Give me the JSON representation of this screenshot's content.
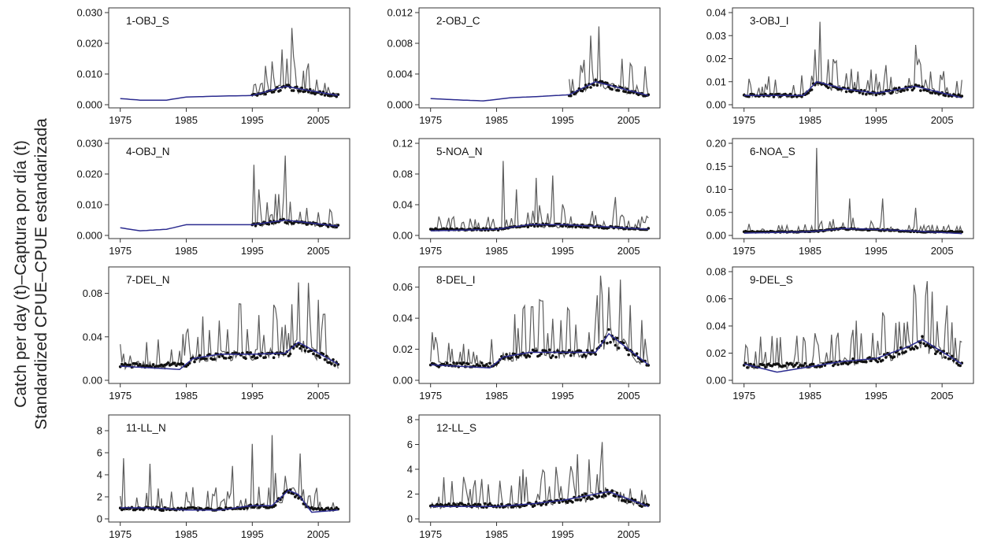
{
  "y_axis_label": {
    "line1": "Catch per day (t)–Captura por día (t)",
    "line2": "Standardized CPUE–CPUE estandarizada"
  },
  "chart_data": [
    {
      "type": "line",
      "title": "1-OBJ_S",
      "xlim": [
        1975,
        2008
      ],
      "x_ticks": [
        1975,
        1985,
        1995,
        2005
      ],
      "ylim": [
        0,
        0.03
      ],
      "y_ticks": [
        "0.000",
        "0.010",
        "0.020",
        "0.030"
      ],
      "series": [],
      "observed": {
        "start": 1995,
        "end": 2008,
        "base": 0.003,
        "peaks": [
          [
            1999.5,
            0.018
          ],
          [
            2001,
            0.025
          ],
          [
            2000.3,
            0.015
          ]
        ]
      },
      "fit": [
        [
          1975,
          0.002
        ],
        [
          1978,
          0.0015
        ],
        [
          1982,
          0.0015
        ],
        [
          1985,
          0.0025
        ],
        [
          1990,
          0.0028
        ],
        [
          1995,
          0.003
        ],
        [
          2000,
          0.006
        ],
        [
          2008,
          0.003
        ]
      ]
    },
    {
      "type": "line",
      "title": "2-OBJ_C",
      "xlim": [
        1975,
        2008
      ],
      "x_ticks": [
        1975,
        1985,
        1995,
        2005
      ],
      "ylim": [
        0,
        0.012
      ],
      "y_ticks": [
        "0.000",
        "0.004",
        "0.008",
        "0.012"
      ],
      "series": [],
      "observed": {
        "start": 1996,
        "end": 2008,
        "base": 0.0012,
        "peaks": [
          [
            1999.2,
            0.009
          ],
          [
            2000.5,
            0.0102
          ],
          [
            2007.5,
            0.005
          ]
        ]
      },
      "fit": [
        [
          1975,
          0.0008
        ],
        [
          1980,
          0.0006
        ],
        [
          1983,
          0.0005
        ],
        [
          1987,
          0.0009
        ],
        [
          1992,
          0.0011
        ],
        [
          1996,
          0.0013
        ],
        [
          2000,
          0.003
        ],
        [
          2008,
          0.0012
        ]
      ]
    },
    {
      "type": "line",
      "title": "3-OBJ_I",
      "xlim": [
        1975,
        2008
      ],
      "x_ticks": [
        1975,
        1985,
        1995,
        2005
      ],
      "ylim": [
        0,
        0.04
      ],
      "y_ticks": [
        "0.00",
        "0.01",
        "0.02",
        "0.03",
        "0.04"
      ],
      "series": [],
      "observed": {
        "start": 1975,
        "end": 2008,
        "base": 0.004,
        "peaks": [
          [
            1986.5,
            0.036
          ],
          [
            1985.8,
            0.024
          ],
          [
            1989,
            0.019
          ],
          [
            2001,
            0.026
          ]
        ]
      },
      "fit": [
        [
          1975,
          0.004
        ],
        [
          1984,
          0.004
        ],
        [
          1986,
          0.01
        ],
        [
          1990,
          0.007
        ],
        [
          1995,
          0.005
        ],
        [
          2001,
          0.008
        ],
        [
          2008,
          0.003
        ]
      ]
    },
    {
      "type": "line",
      "title": "4-OBJ_N",
      "xlim": [
        1975,
        2008
      ],
      "x_ticks": [
        1975,
        1985,
        1995,
        2005
      ],
      "ylim": [
        0,
        0.03
      ],
      "y_ticks": [
        "0.000",
        "0.010",
        "0.020",
        "0.030"
      ],
      "series": [],
      "observed": {
        "start": 1995,
        "end": 2008,
        "base": 0.003,
        "peaks": [
          [
            1995.3,
            0.023
          ],
          [
            2000,
            0.026
          ],
          [
            1996,
            0.015
          ]
        ]
      },
      "fit": [
        [
          1975,
          0.0025
        ],
        [
          1978,
          0.0015
        ],
        [
          1982,
          0.002
        ],
        [
          1985,
          0.0035
        ],
        [
          1990,
          0.0035
        ],
        [
          1995,
          0.0035
        ],
        [
          2000,
          0.005
        ],
        [
          2008,
          0.003
        ]
      ]
    },
    {
      "type": "line",
      "title": "5-NOA_N",
      "xlim": [
        1975,
        2008
      ],
      "x_ticks": [
        1975,
        1985,
        1995,
        2005
      ],
      "ylim": [
        0,
        0.12
      ],
      "y_ticks": [
        "0.00",
        "0.04",
        "0.08",
        "0.12"
      ],
      "series": [],
      "observed": {
        "start": 1975,
        "end": 2008,
        "base": 0.008,
        "peaks": [
          [
            1986,
            0.097
          ],
          [
            1991,
            0.075
          ],
          [
            1993.5,
            0.078
          ],
          [
            1988,
            0.06
          ],
          [
            2003,
            0.05
          ]
        ]
      },
      "fit": [
        [
          1975,
          0.006
        ],
        [
          1985,
          0.008
        ],
        [
          1990,
          0.014
        ],
        [
          1995,
          0.014
        ],
        [
          2000,
          0.012
        ],
        [
          2008,
          0.008
        ]
      ]
    },
    {
      "type": "line",
      "title": "6-NOA_S",
      "xlim": [
        1975,
        2008
      ],
      "x_ticks": [
        1975,
        1985,
        1995,
        2005
      ],
      "ylim": [
        0,
        0.2
      ],
      "y_ticks": [
        "0.00",
        "0.05",
        "0.10",
        "0.15",
        "0.20"
      ],
      "series": [],
      "observed": {
        "start": 1975,
        "end": 2008,
        "base": 0.008,
        "peaks": [
          [
            1986,
            0.19
          ],
          [
            1991,
            0.08
          ],
          [
            1996,
            0.08
          ],
          [
            2001,
            0.06
          ]
        ]
      },
      "fit": [
        [
          1975,
          0.005
        ],
        [
          1985,
          0.008
        ],
        [
          1990,
          0.015
        ],
        [
          1995,
          0.013
        ],
        [
          2000,
          0.01
        ],
        [
          2008,
          0.004
        ]
      ]
    },
    {
      "type": "line",
      "title": "7-DEL_N",
      "xlim": [
        1975,
        2008
      ],
      "x_ticks": [
        1975,
        1985,
        1995,
        2005
      ],
      "ylim": [
        0,
        0.1
      ],
      "y_ticks": [
        "0.00",
        "0.04",
        "0.08"
      ],
      "series": [],
      "observed": {
        "start": 1975,
        "end": 2008,
        "base": 0.014,
        "peaks": [
          [
            2002,
            0.09
          ],
          [
            1996,
            0.06
          ],
          [
            1990,
            0.055
          ],
          [
            2001,
            0.07
          ]
        ]
      },
      "fit": [
        [
          1975,
          0.013
        ],
        [
          1984,
          0.01
        ],
        [
          1986,
          0.02
        ],
        [
          1990,
          0.024
        ],
        [
          1995,
          0.024
        ],
        [
          2000,
          0.025
        ],
        [
          2002,
          0.035
        ],
        [
          2008,
          0.015
        ]
      ]
    },
    {
      "type": "line",
      "title": "8-DEL_I",
      "xlim": [
        1975,
        2008
      ],
      "x_ticks": [
        1975,
        1985,
        1995,
        2005
      ],
      "ylim": [
        0,
        0.07
      ],
      "y_ticks": [
        "0.00",
        "0.02",
        "0.04",
        "0.06"
      ],
      "series": [],
      "observed": {
        "start": 1975,
        "end": 2008,
        "base": 0.01,
        "peaks": [
          [
            2002,
            0.06
          ],
          [
            1996,
            0.045
          ],
          [
            2001,
            0.055
          ]
        ]
      },
      "fit": [
        [
          1975,
          0.01
        ],
        [
          1984,
          0.008
        ],
        [
          1986,
          0.015
        ],
        [
          1990,
          0.018
        ],
        [
          1995,
          0.018
        ],
        [
          2000,
          0.018
        ],
        [
          2002,
          0.03
        ],
        [
          2008,
          0.01
        ]
      ]
    },
    {
      "type": "line",
      "title": "9-DEL_S",
      "xlim": [
        1975,
        2008
      ],
      "x_ticks": [
        1975,
        1985,
        1995,
        2005
      ],
      "ylim": [
        0,
        0.08
      ],
      "y_ticks": [
        "0.00",
        "0.02",
        "0.04",
        "0.06",
        "0.08"
      ],
      "series": [],
      "observed": {
        "start": 1975,
        "end": 2008,
        "base": 0.011,
        "peaks": [
          [
            2001,
            0.063
          ],
          [
            2002.5,
            0.062
          ],
          [
            1996,
            0.05
          ]
        ]
      },
      "fit": [
        [
          1975,
          0.012
        ],
        [
          1980,
          0.006
        ],
        [
          1985,
          0.01
        ],
        [
          1990,
          0.014
        ],
        [
          1995,
          0.016
        ],
        [
          2000,
          0.025
        ],
        [
          2002,
          0.03
        ],
        [
          2008,
          0.012
        ]
      ]
    },
    {
      "type": "line",
      "title": "11-LL_N",
      "xlim": [
        1975,
        2008
      ],
      "x_ticks": [
        1975,
        1985,
        1995,
        2005
      ],
      "ylim": [
        0,
        9
      ],
      "y_ticks": [
        "0",
        "2",
        "4",
        "6",
        "8"
      ],
      "series": [],
      "observed": {
        "start": 1975,
        "end": 2008,
        "base": 0.9,
        "peaks": [
          [
            1975.5,
            5.5
          ],
          [
            1979.5,
            5
          ],
          [
            1995,
            6.8
          ],
          [
            1998,
            7.6
          ],
          [
            1992,
            4.8
          ]
        ]
      },
      "fit": [
        [
          1975,
          1
        ],
        [
          1980,
          1
        ],
        [
          1985,
          0.8
        ],
        [
          1990,
          0.8
        ],
        [
          1995,
          1.2
        ],
        [
          1998,
          1.2
        ],
        [
          2000.5,
          2.6
        ],
        [
          2002,
          2.2
        ],
        [
          2004,
          0.6
        ],
        [
          2008,
          0.8
        ]
      ]
    },
    {
      "type": "line",
      "title": "12-LL_S",
      "xlim": [
        1975,
        2008
      ],
      "x_ticks": [
        1975,
        1985,
        1995,
        2005
      ],
      "ylim": [
        0,
        8
      ],
      "y_ticks": [
        "0",
        "2",
        "4",
        "6",
        "8"
      ],
      "series": [],
      "observed": {
        "start": 1975,
        "end": 2008,
        "base": 1.1,
        "peaks": [
          [
            2001,
            6.2
          ],
          [
            1999,
            4.8
          ],
          [
            1994,
            4.2
          ],
          [
            1989,
            4
          ]
        ]
      },
      "fit": [
        [
          1975,
          1
        ],
        [
          1985,
          1
        ],
        [
          1990,
          1.2
        ],
        [
          1995,
          1.5
        ],
        [
          2000,
          2
        ],
        [
          2002,
          2.2
        ],
        [
          2008,
          1
        ]
      ]
    }
  ],
  "colors": {
    "observed_line": "#5c5c5c",
    "observed_points": "#111111",
    "fit_line": "#2b2b8f",
    "frame": "#333333"
  }
}
